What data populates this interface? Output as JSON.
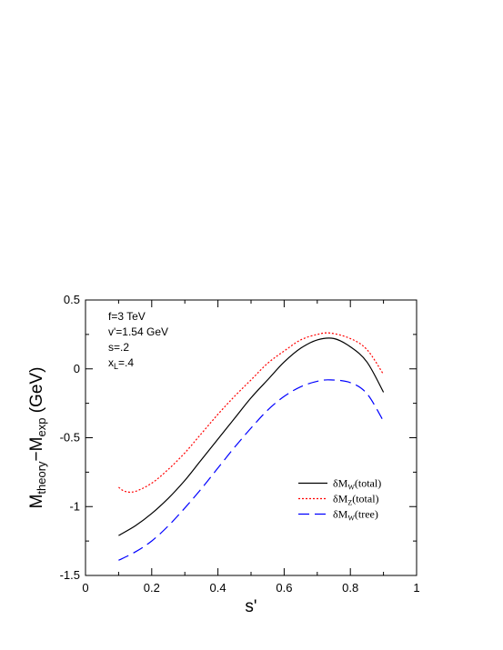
{
  "chart_data": {
    "type": "line",
    "xlabel": "s'",
    "ylabel": {
      "main1": "M",
      "sub1": "theory",
      "dash": "−M",
      "sub2": "exp",
      "unit": " (GeV)"
    },
    "xlim": [
      0,
      1
    ],
    "ylim": [
      -1.5,
      0.5
    ],
    "x_ticks": [
      "0",
      "0.2",
      "0.4",
      "0.6",
      "0.8",
      "1"
    ],
    "y_ticks": [
      "0.5",
      "0",
      "-0.5",
      "-1",
      "-1.5"
    ],
    "annotations": [
      {
        "id": "f",
        "text": "f=3 TeV"
      },
      {
        "id": "vprime",
        "text": "v'=1.54 GeV"
      },
      {
        "id": "s",
        "text": "s=.2"
      },
      {
        "id": "xl",
        "base": "x",
        "sub": "L",
        "rest": "=.4"
      }
    ],
    "legend": {
      "position": "lower-right",
      "entries": [
        {
          "main": "δM",
          "sub": "W",
          "rest": "(total)",
          "style": "solid",
          "color": "#000000"
        },
        {
          "main": "δM",
          "sub": "Z",
          "rest": "(total)",
          "style": "dotted",
          "color": "#ff0000"
        },
        {
          "main": "δM",
          "sub": "W",
          "rest": "(tree)",
          "style": "dashed",
          "color": "#0000ff"
        }
      ]
    },
    "series": [
      {
        "legend_index": 0,
        "color": "#000000",
        "style": "solid",
        "x": [
          0.1,
          0.15,
          0.2,
          0.25,
          0.3,
          0.35,
          0.4,
          0.45,
          0.5,
          0.55,
          0.6,
          0.65,
          0.7,
          0.75,
          0.8,
          0.85,
          0.9
        ],
        "y": [
          -1.21,
          -1.14,
          -1.05,
          -0.94,
          -0.81,
          -0.66,
          -0.51,
          -0.36,
          -0.21,
          -0.08,
          0.05,
          0.15,
          0.21,
          0.22,
          0.16,
          0.05,
          -0.17
        ]
      },
      {
        "legend_index": 1,
        "color": "#ff0000",
        "style": "dotted",
        "x": [
          0.1,
          0.12,
          0.15,
          0.2,
          0.25,
          0.3,
          0.35,
          0.4,
          0.45,
          0.5,
          0.55,
          0.6,
          0.65,
          0.7,
          0.74,
          0.8,
          0.85,
          0.9
        ],
        "y": [
          -0.86,
          -0.89,
          -0.89,
          -0.83,
          -0.73,
          -0.61,
          -0.47,
          -0.33,
          -0.2,
          -0.08,
          0.04,
          0.13,
          0.21,
          0.25,
          0.26,
          0.22,
          0.14,
          -0.04
        ]
      },
      {
        "legend_index": 2,
        "color": "#0000ff",
        "style": "dashed",
        "x": [
          0.1,
          0.15,
          0.2,
          0.25,
          0.3,
          0.35,
          0.4,
          0.45,
          0.5,
          0.55,
          0.6,
          0.65,
          0.7,
          0.74,
          0.8,
          0.85,
          0.9
        ],
        "y": [
          -1.39,
          -1.33,
          -1.25,
          -1.14,
          -1.01,
          -0.87,
          -0.72,
          -0.57,
          -0.43,
          -0.3,
          -0.2,
          -0.13,
          -0.09,
          -0.08,
          -0.1,
          -0.18,
          -0.38
        ]
      }
    ]
  }
}
